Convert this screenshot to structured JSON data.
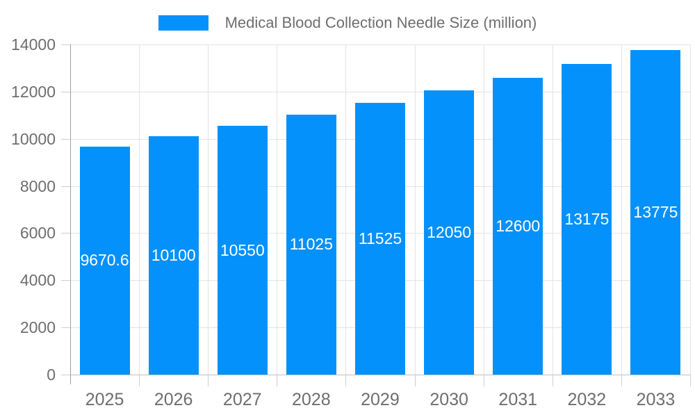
{
  "chart_data": {
    "type": "bar",
    "title": "Medical Blood Collection Needle Size (million)",
    "categories": [
      "2025",
      "2026",
      "2027",
      "2028",
      "2029",
      "2030",
      "2031",
      "2032",
      "2033"
    ],
    "values": [
      9670.6,
      10100,
      10550,
      11025,
      11525,
      12050,
      12600,
      13175,
      13775
    ],
    "value_labels": [
      "9670.6",
      "10100",
      "10550",
      "11025",
      "11525",
      "12050",
      "12600",
      "13175",
      "13775"
    ],
    "series_name": "Medical Blood Collection Needle Size (million)",
    "xlabel": "",
    "ylabel": "",
    "ylim": [
      0,
      14000
    ],
    "yticks": [
      0,
      2000,
      4000,
      6000,
      8000,
      10000,
      12000,
      14000
    ],
    "grid": true,
    "legend_position": "top-center",
    "colors": {
      "bar": "#0591fb",
      "value_label": "#ffffff",
      "axis_text": "#6e6e6e",
      "gridline": "#e3e3e3",
      "baseline": "#c0c0c0",
      "axis_line": "#9e9e9e",
      "tick": "#cfcfcf",
      "background": "#ffffff"
    }
  }
}
